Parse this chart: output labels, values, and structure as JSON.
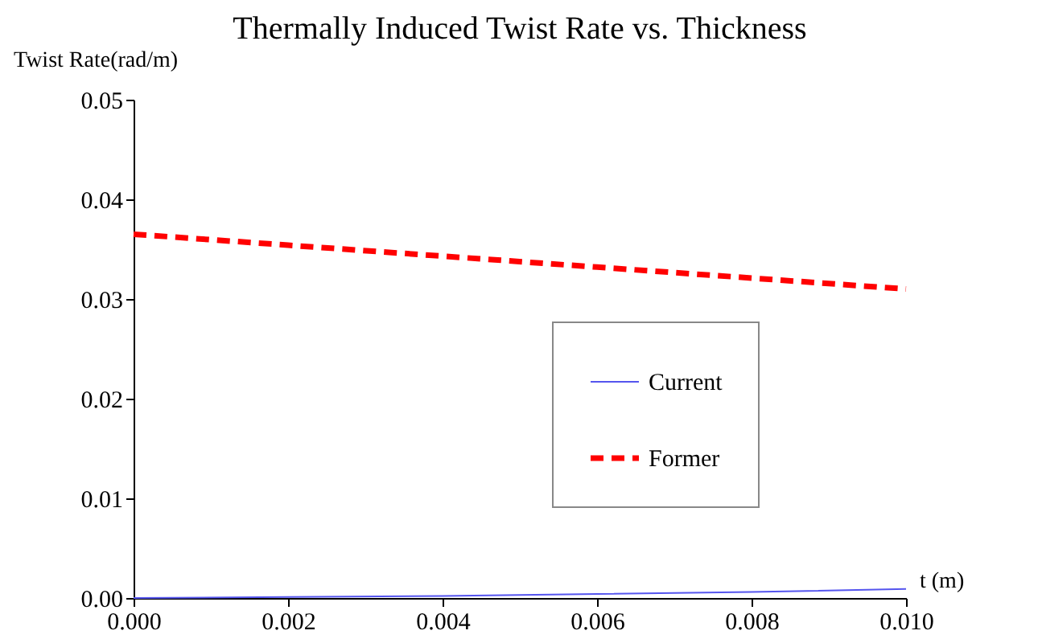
{
  "chart_data": {
    "type": "line",
    "title": "Thermally Induced Twist Rate vs. Thickness",
    "xlabel": "t (m)",
    "ylabel": "Twist  Rate(rad/m)",
    "x": [
      0,
      0.002,
      0.004,
      0.006,
      0.008,
      0.01
    ],
    "series": [
      {
        "name": "Current",
        "color": "#5555ee",
        "line_style": "solid",
        "values": [
          0,
          0.0001,
          0.0002,
          0.0004,
          0.0006,
          0.0009
        ]
      },
      {
        "name": "Former",
        "color": "#ff0000",
        "line_style": "dashed",
        "values": [
          0.0365,
          0.0354,
          0.0343,
          0.0332,
          0.0321,
          0.031
        ]
      }
    ],
    "xlim": [
      0,
      0.01
    ],
    "ylim": [
      0,
      0.05
    ],
    "xticks": [
      {
        "value": 0,
        "label": "0.000"
      },
      {
        "value": 0.002,
        "label": "0.002"
      },
      {
        "value": 0.004,
        "label": "0.004"
      },
      {
        "value": 0.006,
        "label": "0.006"
      },
      {
        "value": 0.008,
        "label": "0.008"
      },
      {
        "value": 0.01,
        "label": "0.010"
      }
    ],
    "yticks": [
      {
        "value": 0,
        "label": "0.00"
      },
      {
        "value": 0.01,
        "label": "0.01"
      },
      {
        "value": 0.02,
        "label": "0.02"
      },
      {
        "value": 0.03,
        "label": "0.03"
      },
      {
        "value": 0.04,
        "label": "0.04"
      },
      {
        "value": 0.05,
        "label": "0.05"
      }
    ],
    "legend": "right",
    "grid": false,
    "marker": "none"
  }
}
